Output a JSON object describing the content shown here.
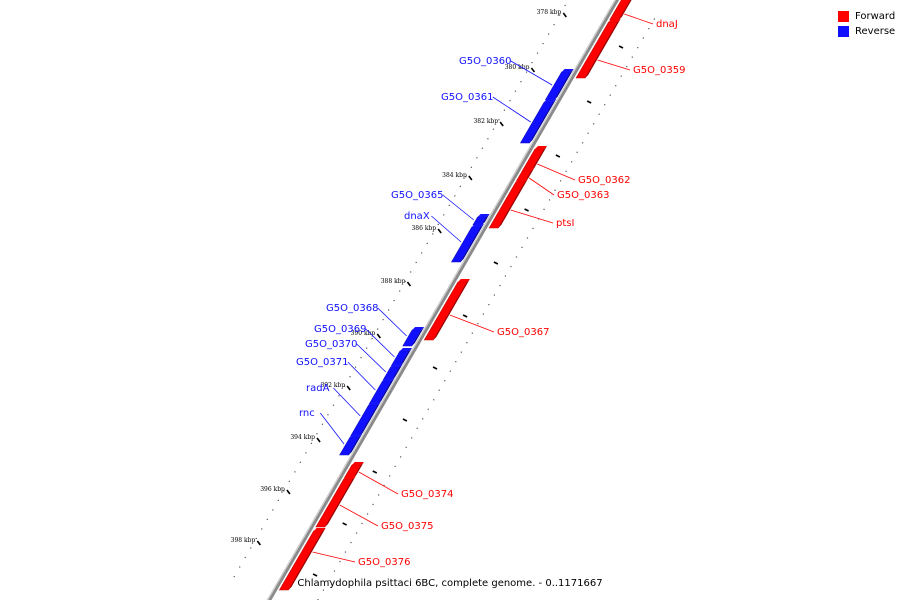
{
  "legend": {
    "forward_label": "Forward",
    "reverse_label": "Reverse",
    "forward_color": "#ff0000",
    "reverse_color": "#1010ff"
  },
  "caption": "Chlamydophila psittaci 6BC, complete genome. - 0..1171667",
  "ticks": [
    {
      "label": "378 kbp",
      "kbp": 378
    },
    {
      "label": "380 kbp",
      "kbp": 380
    },
    {
      "label": "382 kbp",
      "kbp": 382
    },
    {
      "label": "384 kbp",
      "kbp": 384
    },
    {
      "label": "386 kbp",
      "kbp": 386
    },
    {
      "label": "388 kbp",
      "kbp": 388
    },
    {
      "label": "390 kbp",
      "kbp": 390
    },
    {
      "label": "392 kbp",
      "kbp": 392
    },
    {
      "label": "394 kbp",
      "kbp": 394
    },
    {
      "label": "396 kbp",
      "kbp": 396
    },
    {
      "label": "398 kbp",
      "kbp": 398
    }
  ],
  "genes": [
    {
      "name": "dnaJ",
      "strand": "forward"
    },
    {
      "name": "G5O_0359",
      "strand": "forward"
    },
    {
      "name": "G5O_0360",
      "strand": "reverse"
    },
    {
      "name": "G5O_0361",
      "strand": "reverse"
    },
    {
      "name": "G5O_0362",
      "strand": "forward"
    },
    {
      "name": "G5O_0363",
      "strand": "forward"
    },
    {
      "name": "ptsI",
      "strand": "forward"
    },
    {
      "name": "G5O_0365",
      "strand": "reverse"
    },
    {
      "name": "dnaX",
      "strand": "reverse"
    },
    {
      "name": "G5O_0367",
      "strand": "forward"
    },
    {
      "name": "G5O_0368",
      "strand": "reverse"
    },
    {
      "name": "G5O_0369",
      "strand": "reverse"
    },
    {
      "name": "G5O_0370",
      "strand": "reverse"
    },
    {
      "name": "G5O_0371",
      "strand": "reverse"
    },
    {
      "name": "radA",
      "strand": "reverse"
    },
    {
      "name": "rnc",
      "strand": "reverse"
    },
    {
      "name": "G5O_0374",
      "strand": "forward"
    },
    {
      "name": "G5O_0375",
      "strand": "forward"
    },
    {
      "name": "G5O_0376",
      "strand": "forward"
    }
  ]
}
